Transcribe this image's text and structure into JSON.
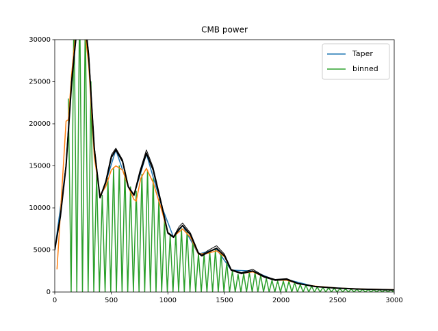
{
  "chart_data": {
    "type": "line",
    "title": "CMB power",
    "xlim": [
      0,
      3000
    ],
    "ylim": [
      0,
      30000
    ],
    "xticks": [
      0,
      500,
      1000,
      1500,
      2000,
      2500,
      3000
    ],
    "yticks": [
      0,
      5000,
      10000,
      15000,
      20000,
      25000,
      30000
    ],
    "legend": "upper right",
    "series": [
      {
        "name": "Taper",
        "color": "#1f77b4",
        "x": [
          0,
          100,
          150,
          220,
          300,
          350,
          400,
          450,
          540,
          650,
          700,
          810,
          950,
          1050,
          1130,
          1270,
          1430,
          1560,
          1750,
          1950,
          2050,
          2300,
          2700,
          3000
        ],
        "values": [
          5000,
          15000,
          26000,
          33500,
          28000,
          17000,
          11200,
          13000,
          16900,
          12500,
          11500,
          16400,
          10000,
          6500,
          7900,
          4500,
          5100,
          2600,
          2500,
          1400,
          1500,
          650,
          350,
          250
        ]
      },
      {
        "name": "binned",
        "color": "#2ca02c",
        "x": [
          120,
          145,
          170,
          195,
          220,
          245,
          270,
          295,
          320,
          345,
          370,
          395,
          420,
          445,
          470,
          495,
          520,
          545,
          570,
          595,
          620,
          645,
          670,
          695,
          720,
          745,
          770,
          795,
          820,
          845,
          870,
          895,
          920,
          945,
          970,
          995,
          1020,
          1045,
          1070,
          1095,
          1120,
          1145,
          1170,
          1195,
          1220,
          1245,
          1270,
          1295,
          1320,
          1345,
          1370,
          1395,
          1420,
          1445,
          1470,
          1495,
          1520,
          1545,
          1570,
          1595,
          1620,
          1645,
          1670,
          1695,
          1720,
          1745,
          1770,
          1795,
          1820,
          1845,
          1870,
          1895,
          1920,
          1945,
          1970,
          1995,
          2020,
          2045,
          2070,
          2095,
          2120,
          2145,
          2170,
          2195,
          2220,
          2245,
          2270,
          2295,
          2320,
          2345,
          2370,
          2395,
          2420,
          2445,
          2470,
          2495,
          2520,
          2545,
          2570,
          2595,
          2620,
          2645,
          2670,
          2695,
          2720,
          2745,
          2770,
          2795,
          2820,
          2845,
          2870,
          2895,
          2920,
          2945,
          2970,
          2995
        ],
        "values": [
          23000,
          0,
          34000,
          0,
          35000,
          0,
          33000,
          0,
          25000,
          0,
          14000,
          0,
          11500,
          0,
          13500,
          0,
          14800,
          0,
          15000,
          0,
          14500,
          0,
          12500,
          0,
          12000,
          0,
          14000,
          0,
          14500,
          0,
          13500,
          0,
          11000,
          0,
          8500,
          0,
          6800,
          0,
          6900,
          0,
          7500,
          0,
          7300,
          0,
          6000,
          0,
          4600,
          0,
          4500,
          0,
          4800,
          0,
          5000,
          0,
          4600,
          0,
          3500,
          0,
          2500,
          0,
          2100,
          0,
          2200,
          0,
          2300,
          0,
          2300,
          0,
          2000,
          0,
          1600,
          0,
          1400,
          0,
          1300,
          0,
          1300,
          0,
          1300,
          0,
          1100,
          0,
          900,
          0,
          800,
          0,
          700,
          0,
          600,
          0,
          550,
          0,
          500,
          0,
          450,
          0,
          400,
          0,
          380,
          0,
          350,
          0,
          330,
          0,
          300,
          0,
          290,
          0,
          270,
          0,
          260,
          0,
          250,
          0,
          240,
          0
        ]
      },
      {
        "color": "#ff7f0e",
        "x": [
          20,
          100,
          120,
          150,
          200,
          250,
          300,
          350,
          400,
          450,
          500,
          540,
          600,
          650,
          700,
          720,
          760,
          810,
          870,
          950,
          1000,
          1050,
          1130,
          1200,
          1270,
          1350,
          1430,
          1500,
          1560,
          1650,
          1750,
          1850,
          1950,
          2050,
          2150,
          2300,
          2500,
          2700,
          3000
        ],
        "values": [
          2700,
          20300,
          20500,
          26000,
          33000,
          33000,
          27000,
          16000,
          11500,
          12500,
          14500,
          15000,
          14500,
          12500,
          11000,
          10800,
          13500,
          14700,
          13000,
          9500,
          7000,
          6600,
          7500,
          6500,
          4500,
          4600,
          4900,
          4200,
          2600,
          2200,
          2400,
          1800,
          1400,
          1400,
          1000,
          700,
          480,
          370,
          270
        ]
      },
      {
        "color": "#000000",
        "x": [
          0,
          50,
          100,
          150,
          200,
          220,
          260,
          300,
          350,
          400,
          450,
          500,
          540,
          600,
          650,
          700,
          750,
          810,
          870,
          950,
          1000,
          1050,
          1100,
          1130,
          1200,
          1270,
          1300,
          1350,
          1430,
          1500,
          1560,
          1650,
          1750,
          1850,
          1950,
          2050,
          2150,
          2300,
          2500,
          2700,
          3000
        ],
        "values": [
          5000,
          9000,
          15000,
          25000,
          32000,
          33500,
          33000,
          28000,
          17000,
          11200,
          13000,
          16000,
          16900,
          15500,
          12500,
          11500,
          14000,
          16500,
          14500,
          10000,
          7000,
          6500,
          7500,
          7900,
          6800,
          4600,
          4300,
          4700,
          5200,
          4300,
          2600,
          2200,
          2500,
          1800,
          1400,
          1500,
          1000,
          650,
          450,
          350,
          250
        ]
      },
      {
        "color": "#000000",
        "x": [
          0,
          50,
          100,
          150,
          200,
          220,
          260,
          300,
          350,
          400,
          450,
          500,
          540,
          600,
          650,
          700,
          750,
          810,
          870,
          950,
          1000,
          1050,
          1100,
          1130,
          1200,
          1270,
          1300,
          1350,
          1430,
          1500,
          1560,
          1650,
          1750,
          1850,
          1950,
          2050,
          2150,
          2300,
          2500,
          2700,
          3000
        ],
        "values": [
          5000,
          9200,
          15300,
          25500,
          32500,
          34000,
          33500,
          28500,
          17300,
          11300,
          13200,
          16300,
          17100,
          15700,
          12600,
          11600,
          14300,
          16900,
          14800,
          10200,
          7100,
          6600,
          7800,
          8200,
          7000,
          4700,
          4400,
          4900,
          5500,
          4500,
          2700,
          2300,
          2700,
          1900,
          1500,
          1600,
          1050,
          700,
          480,
          370,
          260
        ]
      }
    ]
  }
}
